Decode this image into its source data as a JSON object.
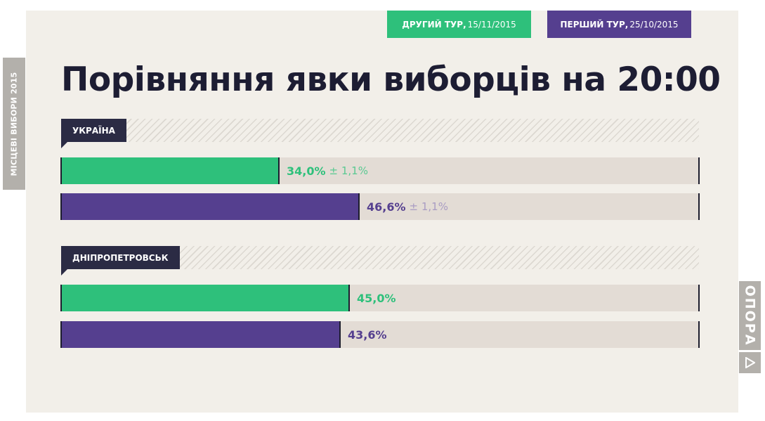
{
  "side_tab": "МІСЦЕВІ ВИБОРИ 2015",
  "legend": [
    {
      "bold": "ДРУГИЙ ТУР,",
      "date": "15/11/2015",
      "color": "#2ec07b"
    },
    {
      "bold": "ПЕРШИЙ ТУР,",
      "date": "25/10/2015",
      "color": "#553f8f"
    }
  ],
  "brand": {
    "text": "ОПОРА",
    "icon": "play-triangle-icon"
  },
  "chart_data": {
    "type": "bar",
    "orientation": "horizontal",
    "title": "Порівняння явки виборців на 20:00",
    "xlim": [
      0,
      100
    ],
    "unit": "%",
    "series_names": [
      "ДРУГИЙ ТУР, 15/11/2015",
      "ПЕРШИЙ ТУР, 25/10/2015"
    ],
    "groups": [
      {
        "name": "УКРАЇНА",
        "bars": [
          {
            "series": "ДРУГИЙ ТУР, 15/11/2015",
            "value": 34.0,
            "label": "34,0%",
            "moe": "± 1,1%"
          },
          {
            "series": "ПЕРШИЙ ТУР, 25/10/2015",
            "value": 46.6,
            "label": "46,6%",
            "moe": "± 1,1%"
          }
        ]
      },
      {
        "name": "ДНІПРОПЕТРОВСЬК",
        "bars": [
          {
            "series": "ДРУГИЙ ТУР, 15/11/2015",
            "value": 45.0,
            "label": "45,0%",
            "moe": ""
          },
          {
            "series": "ПЕРШИЙ ТУР, 25/10/2015",
            "value": 43.6,
            "label": "43,6%",
            "moe": ""
          }
        ]
      }
    ]
  }
}
